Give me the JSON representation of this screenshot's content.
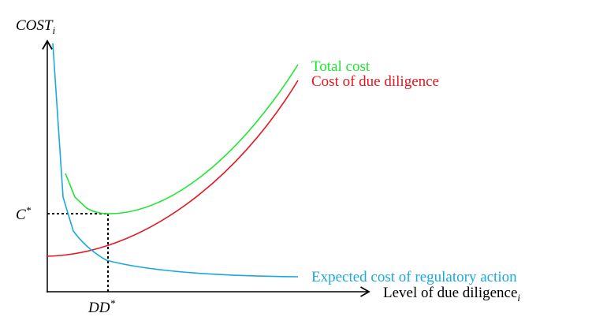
{
  "axes": {
    "y_label": {
      "text": "COST",
      "subscript": "i"
    },
    "x_label": {
      "text": "Level of due diligence",
      "subscript": "i"
    }
  },
  "markers": {
    "c_star": {
      "text": "C",
      "superscript": "*"
    },
    "dd_star": {
      "text": "DD",
      "superscript": "*"
    }
  },
  "curves": [
    {
      "label": "Total cost",
      "color": "#1ee632"
    },
    {
      "label": "Cost of due diligence",
      "color": "#e8141e"
    },
    {
      "label": "Expected cost of regulatory action",
      "color": "#1aa8e0"
    }
  ]
}
